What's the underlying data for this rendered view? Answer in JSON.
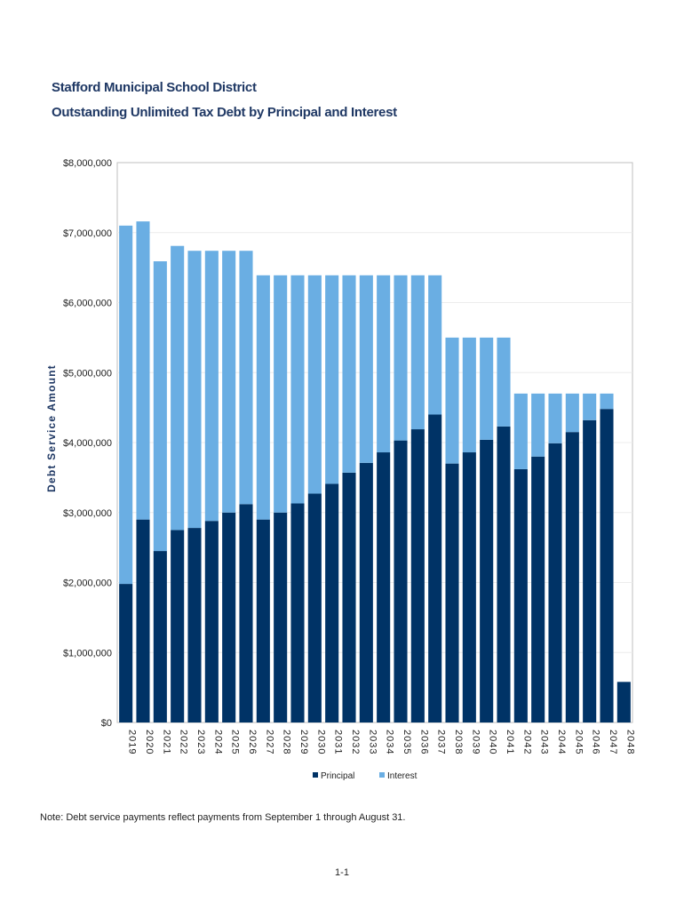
{
  "header": {
    "title_line1": "Stafford Municipal School District",
    "title_line2": "Outstanding Unlimited Tax Debt by Principal and Interest"
  },
  "chart_data": {
    "type": "bar",
    "stacked": true,
    "ylabel": "Debt Service Amount",
    "xlabel": "",
    "ylim": [
      0,
      8000000
    ],
    "y_ticks": [
      "$0",
      "$1,000,000",
      "$2,000,000",
      "$3,000,000",
      "$4,000,000",
      "$5,000,000",
      "$6,000,000",
      "$7,000,000",
      "$8,000,000"
    ],
    "grid": true,
    "legend_position": "bottom",
    "categories": [
      "2019",
      "2020",
      "2021",
      "2022",
      "2023",
      "2024",
      "2025",
      "2026",
      "2027",
      "2028",
      "2029",
      "2030",
      "2031",
      "2032",
      "2033",
      "2034",
      "2035",
      "2036",
      "2037",
      "2038",
      "2039",
      "2040",
      "2041",
      "2042",
      "2043",
      "2044",
      "2045",
      "2046",
      "2047",
      "2048"
    ],
    "series": [
      {
        "name": "Principal",
        "color": "#003366",
        "values": [
          1980000,
          2900000,
          2450000,
          2750000,
          2780000,
          2880000,
          3000000,
          3120000,
          2900000,
          3000000,
          3130000,
          3270000,
          3410000,
          3570000,
          3710000,
          3860000,
          4030000,
          4190000,
          4400000,
          3700000,
          3860000,
          4040000,
          4230000,
          3620000,
          3800000,
          3990000,
          4150000,
          4320000,
          4480000,
          580000
        ]
      },
      {
        "name": "Interest",
        "color": "#6aaee3",
        "values": [
          5120000,
          4260000,
          4140000,
          4060000,
          3960000,
          3860000,
          3740000,
          3620000,
          3490000,
          3390000,
          3260000,
          3120000,
          2980000,
          2820000,
          2680000,
          2530000,
          2360000,
          2200000,
          1990000,
          1800000,
          1640000,
          1460000,
          1270000,
          1080000,
          900000,
          710000,
          550000,
          380000,
          220000,
          0
        ]
      }
    ]
  },
  "footer": {
    "note": "Note: Debt service payments reflect payments from September 1 through August 31.",
    "page_number": "1-1"
  }
}
